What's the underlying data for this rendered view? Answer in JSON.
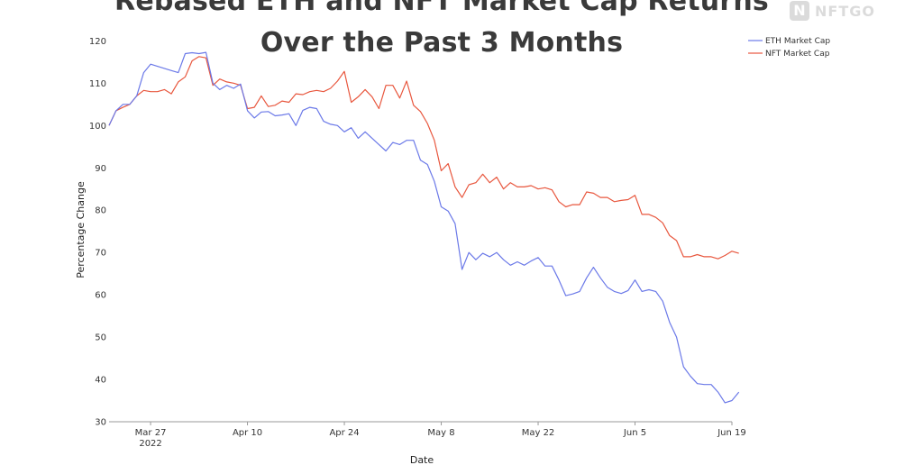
{
  "chart_data": {
    "type": "line",
    "title_line1": "Rebased ETH and NFT Market Cap Returns",
    "title_line2": "Over the Past 3 Months",
    "xlabel": "Date",
    "ylabel": "Percentage Change",
    "ylim": [
      30,
      122
    ],
    "yticks": [
      30,
      40,
      50,
      60,
      70,
      80,
      90,
      100,
      110,
      120
    ],
    "xlim": [
      "2022-03-21",
      "2022-06-19"
    ],
    "xticks": [
      {
        "date": "2022-03-27",
        "label": "Mar 27",
        "sublabel": "2022"
      },
      {
        "date": "2022-04-10",
        "label": "Apr 10",
        "sublabel": ""
      },
      {
        "date": "2022-04-24",
        "label": "Apr 24",
        "sublabel": ""
      },
      {
        "date": "2022-05-08",
        "label": "May 8",
        "sublabel": ""
      },
      {
        "date": "2022-05-22",
        "label": "May 22",
        "sublabel": ""
      },
      {
        "date": "2022-06-05",
        "label": "Jun 5",
        "sublabel": ""
      },
      {
        "date": "2022-06-19",
        "label": "Jun 19",
        "sublabel": ""
      }
    ],
    "legend_position": "top-right",
    "series": [
      {
        "name": "ETH Market Cap",
        "color": "#6b79e8",
        "points": [
          [
            "2022-03-21",
            100
          ],
          [
            "2022-03-22",
            103.5
          ],
          [
            "2022-03-23",
            105
          ],
          [
            "2022-03-24",
            105
          ],
          [
            "2022-03-25",
            107
          ],
          [
            "2022-03-26",
            112.5
          ],
          [
            "2022-03-27",
            114.5
          ],
          [
            "2022-03-28",
            114
          ],
          [
            "2022-03-29",
            113.5
          ],
          [
            "2022-03-30",
            113
          ],
          [
            "2022-03-31",
            112.5
          ],
          [
            "2022-04-01",
            117
          ],
          [
            "2022-04-02",
            117.2
          ],
          [
            "2022-04-03",
            117
          ],
          [
            "2022-04-04",
            117.3
          ],
          [
            "2022-04-05",
            110
          ],
          [
            "2022-04-06",
            108.5
          ],
          [
            "2022-04-07",
            109.5
          ],
          [
            "2022-04-08",
            108.8
          ],
          [
            "2022-04-09",
            109.8
          ],
          [
            "2022-04-10",
            103.5
          ],
          [
            "2022-04-11",
            101.8
          ],
          [
            "2022-04-12",
            103.2
          ],
          [
            "2022-04-13",
            103.3
          ],
          [
            "2022-04-14",
            102.3
          ],
          [
            "2022-04-15",
            102.5
          ],
          [
            "2022-04-16",
            102.8
          ],
          [
            "2022-04-17",
            100
          ],
          [
            "2022-04-18",
            103.6
          ],
          [
            "2022-04-19",
            104.3
          ],
          [
            "2022-04-20",
            104
          ],
          [
            "2022-04-21",
            101
          ],
          [
            "2022-04-22",
            100.3
          ],
          [
            "2022-04-23",
            100
          ],
          [
            "2022-04-24",
            98.5
          ],
          [
            "2022-04-25",
            99.5
          ],
          [
            "2022-04-26",
            97
          ],
          [
            "2022-04-27",
            98.5
          ],
          [
            "2022-04-28",
            97
          ],
          [
            "2022-04-29",
            95.5
          ],
          [
            "2022-04-30",
            94
          ],
          [
            "2022-05-01",
            96
          ],
          [
            "2022-05-02",
            95.5
          ],
          [
            "2022-05-03",
            96.5
          ],
          [
            "2022-05-04",
            96.5
          ],
          [
            "2022-05-05",
            91.8
          ],
          [
            "2022-05-06",
            90.8
          ],
          [
            "2022-05-07",
            86.8
          ],
          [
            "2022-05-08",
            80.8
          ],
          [
            "2022-05-09",
            79.8
          ],
          [
            "2022-05-10",
            76.8
          ],
          [
            "2022-05-11",
            66
          ],
          [
            "2022-05-12",
            70
          ],
          [
            "2022-05-13",
            68.3
          ],
          [
            "2022-05-14",
            69.8
          ],
          [
            "2022-05-15",
            69
          ],
          [
            "2022-05-16",
            70
          ],
          [
            "2022-05-17",
            68.3
          ],
          [
            "2022-05-18",
            67
          ],
          [
            "2022-05-19",
            67.8
          ],
          [
            "2022-05-20",
            67
          ],
          [
            "2022-05-21",
            68
          ],
          [
            "2022-05-22",
            68.8
          ],
          [
            "2022-05-23",
            66.8
          ],
          [
            "2022-05-24",
            66.8
          ],
          [
            "2022-05-25",
            63.5
          ],
          [
            "2022-05-26",
            59.8
          ],
          [
            "2022-05-27",
            60.2
          ],
          [
            "2022-05-28",
            60.8
          ],
          [
            "2022-05-29",
            64
          ],
          [
            "2022-05-30",
            66.5
          ],
          [
            "2022-05-31",
            64
          ],
          [
            "2022-06-01",
            61.8
          ],
          [
            "2022-06-02",
            60.8
          ],
          [
            "2022-06-03",
            60.3
          ],
          [
            "2022-06-04",
            61
          ],
          [
            "2022-06-05",
            63.5
          ],
          [
            "2022-06-06",
            60.8
          ],
          [
            "2022-06-07",
            61.2
          ],
          [
            "2022-06-08",
            60.8
          ],
          [
            "2022-06-09",
            58.5
          ],
          [
            "2022-06-10",
            53.5
          ],
          [
            "2022-06-11",
            50
          ],
          [
            "2022-06-12",
            43
          ],
          [
            "2022-06-13",
            40.8
          ],
          [
            "2022-06-14",
            39
          ],
          [
            "2022-06-15",
            38.8
          ],
          [
            "2022-06-16",
            38.8
          ],
          [
            "2022-06-17",
            37
          ],
          [
            "2022-06-18",
            34.5
          ],
          [
            "2022-06-19",
            35
          ],
          [
            "2022-06-20",
            37
          ]
        ]
      },
      {
        "name": "NFT Market Cap",
        "color": "#e8573e",
        "points": [
          [
            "2022-03-21",
            100
          ],
          [
            "2022-03-22",
            103.5
          ],
          [
            "2022-03-23",
            104.3
          ],
          [
            "2022-03-24",
            105
          ],
          [
            "2022-03-25",
            107
          ],
          [
            "2022-03-26",
            108.3
          ],
          [
            "2022-03-27",
            108
          ],
          [
            "2022-03-28",
            108
          ],
          [
            "2022-03-29",
            108.5
          ],
          [
            "2022-03-30",
            107.5
          ],
          [
            "2022-03-31",
            110.3
          ],
          [
            "2022-04-01",
            111.5
          ],
          [
            "2022-04-02",
            115.3
          ],
          [
            "2022-04-03",
            116.3
          ],
          [
            "2022-04-04",
            116
          ],
          [
            "2022-04-05",
            109.5
          ],
          [
            "2022-04-06",
            111
          ],
          [
            "2022-04-07",
            110.3
          ],
          [
            "2022-04-08",
            110
          ],
          [
            "2022-04-09",
            109.5
          ],
          [
            "2022-04-10",
            104
          ],
          [
            "2022-04-11",
            104.3
          ],
          [
            "2022-04-12",
            107
          ],
          [
            "2022-04-13",
            104.5
          ],
          [
            "2022-04-14",
            104.8
          ],
          [
            "2022-04-15",
            105.8
          ],
          [
            "2022-04-16",
            105.5
          ],
          [
            "2022-04-17",
            107.5
          ],
          [
            "2022-04-18",
            107.3
          ],
          [
            "2022-04-19",
            108
          ],
          [
            "2022-04-20",
            108.3
          ],
          [
            "2022-04-21",
            108
          ],
          [
            "2022-04-22",
            108.8
          ],
          [
            "2022-04-23",
            110.5
          ],
          [
            "2022-04-24",
            112.8
          ],
          [
            "2022-04-25",
            105.5
          ],
          [
            "2022-04-26",
            106.8
          ],
          [
            "2022-04-27",
            108.5
          ],
          [
            "2022-04-28",
            106.8
          ],
          [
            "2022-04-29",
            104
          ],
          [
            "2022-04-30",
            109.5
          ],
          [
            "2022-05-01",
            109.5
          ],
          [
            "2022-05-02",
            106.5
          ],
          [
            "2022-05-03",
            110.5
          ],
          [
            "2022-05-04",
            104.8
          ],
          [
            "2022-05-05",
            103.3
          ],
          [
            "2022-05-06",
            100.5
          ],
          [
            "2022-05-07",
            96.5
          ],
          [
            "2022-05-08",
            89.3
          ],
          [
            "2022-05-09",
            91
          ],
          [
            "2022-05-10",
            85.5
          ],
          [
            "2022-05-11",
            83
          ],
          [
            "2022-05-12",
            86
          ],
          [
            "2022-05-13",
            86.5
          ],
          [
            "2022-05-14",
            88.5
          ],
          [
            "2022-05-15",
            86.5
          ],
          [
            "2022-05-16",
            87.8
          ],
          [
            "2022-05-17",
            85
          ],
          [
            "2022-05-18",
            86.5
          ],
          [
            "2022-05-19",
            85.5
          ],
          [
            "2022-05-20",
            85.5
          ],
          [
            "2022-05-21",
            85.8
          ],
          [
            "2022-05-22",
            85
          ],
          [
            "2022-05-23",
            85.3
          ],
          [
            "2022-05-24",
            84.8
          ],
          [
            "2022-05-25",
            82
          ],
          [
            "2022-05-26",
            80.8
          ],
          [
            "2022-05-27",
            81.3
          ],
          [
            "2022-05-28",
            81.3
          ],
          [
            "2022-05-29",
            84.3
          ],
          [
            "2022-05-30",
            84
          ],
          [
            "2022-05-31",
            83
          ],
          [
            "2022-06-01",
            83
          ],
          [
            "2022-06-02",
            82
          ],
          [
            "2022-06-03",
            82.3
          ],
          [
            "2022-06-04",
            82.5
          ],
          [
            "2022-06-05",
            83.5
          ],
          [
            "2022-06-06",
            79
          ],
          [
            "2022-06-07",
            79
          ],
          [
            "2022-06-08",
            78.3
          ],
          [
            "2022-06-09",
            77
          ],
          [
            "2022-06-10",
            74
          ],
          [
            "2022-06-11",
            72.8
          ],
          [
            "2022-06-12",
            69
          ],
          [
            "2022-06-13",
            69
          ],
          [
            "2022-06-14",
            69.5
          ],
          [
            "2022-06-15",
            69
          ],
          [
            "2022-06-16",
            69
          ],
          [
            "2022-06-17",
            68.5
          ],
          [
            "2022-06-18",
            69.3
          ],
          [
            "2022-06-19",
            70.3
          ],
          [
            "2022-06-20",
            69.8
          ]
        ]
      }
    ]
  },
  "watermark": {
    "label": "NFTGO",
    "icon": "nftgo-logo-icon"
  }
}
